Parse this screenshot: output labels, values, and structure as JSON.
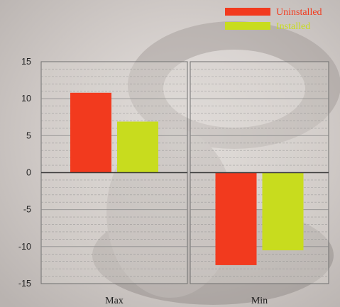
{
  "chart_data": {
    "type": "bar",
    "title": "",
    "xlabel": "",
    "ylabel": "",
    "categories": [
      "Max",
      "Min"
    ],
    "series": [
      {
        "name": "Uninstalled",
        "values": [
          10.8,
          -12.5
        ],
        "color": "#f23a1e"
      },
      {
        "name": "Installed",
        "values": [
          6.9,
          -10.5
        ],
        "color": "#c8dc1e"
      }
    ],
    "ylim": [
      -15,
      15
    ],
    "yticks": [
      15,
      10,
      5,
      0,
      -5,
      -10,
      -15
    ],
    "grid": true,
    "legend": "top-right"
  },
  "colors": {
    "background": "#cfc9c6",
    "panel": "#d8d2cf",
    "axis_text": "#222222",
    "gridline": "#8a8a8a"
  }
}
